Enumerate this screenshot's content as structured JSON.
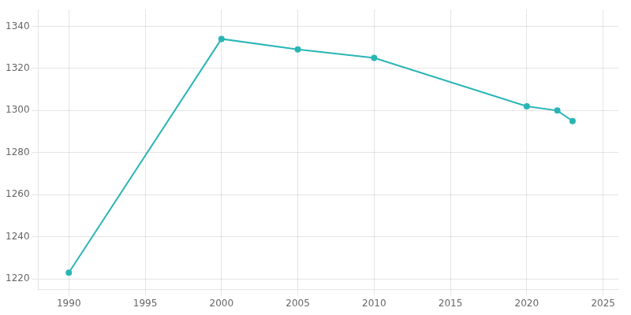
{
  "chart_data": {
    "type": "line",
    "x": [
      1990,
      2000,
      2005,
      2010,
      2020,
      2022,
      2023
    ],
    "values": [
      1223,
      1334,
      1329,
      1325,
      1302,
      1300,
      1295
    ],
    "color": "#2ab5b5",
    "marker": "circle",
    "xlim": [
      1988,
      2026
    ],
    "ylim": [
      1215,
      1348
    ],
    "xticks": [
      1990,
      1995,
      2000,
      2005,
      2010,
      2015,
      2020,
      2025
    ],
    "yticks": [
      1220,
      1240,
      1260,
      1280,
      1300,
      1320,
      1340
    ],
    "grid": true
  }
}
